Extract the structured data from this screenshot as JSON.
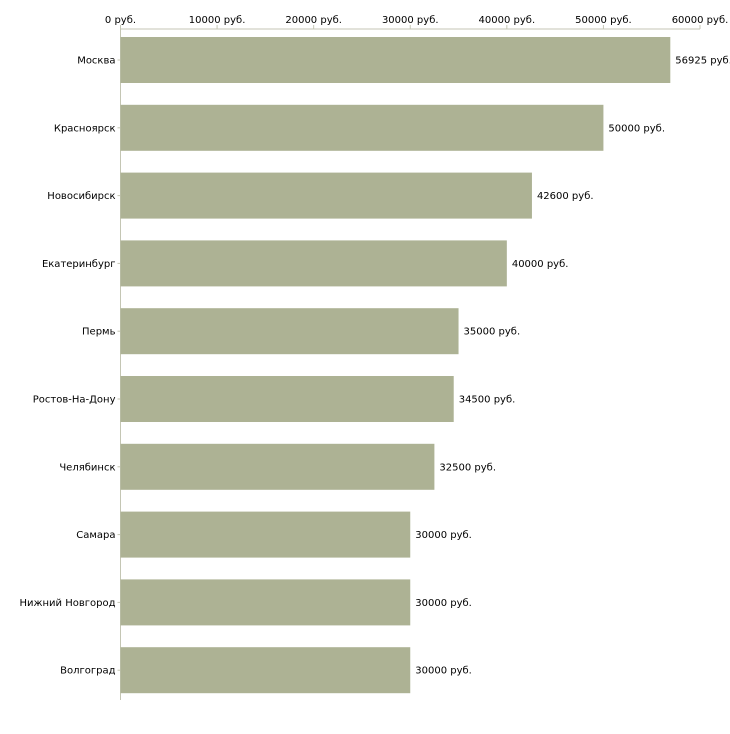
{
  "chart_data": {
    "type": "bar",
    "orientation": "horizontal",
    "title": "",
    "xlabel": "",
    "ylabel": "",
    "unit": "руб.",
    "xlim": [
      0,
      60000
    ],
    "ticks": [
      0,
      10000,
      20000,
      30000,
      40000,
      50000,
      60000
    ],
    "tick_labels": [
      "0 руб.",
      "10000 руб.",
      "20000 руб.",
      "30000 руб.",
      "40000 руб.",
      "50000 руб.",
      "60000 руб."
    ],
    "categories": [
      "Москва",
      "Красноярск",
      "Новосибирск",
      "Екатеринбург",
      "Пермь",
      "Ростов-На-Дону",
      "Челябинск",
      "Самара",
      "Нижний Новгород",
      "Волгоград"
    ],
    "values": [
      56925,
      50000,
      42600,
      40000,
      35000,
      34500,
      32500,
      30000,
      30000,
      30000
    ],
    "value_labels": [
      "56925 руб.",
      "50000 руб.",
      "42600 руб.",
      "40000 руб.",
      "35000 руб.",
      "34500 руб.",
      "32500 руб.",
      "30000 руб.",
      "30000 руб.",
      "30000 руб."
    ],
    "axis_position": "top",
    "grid": false,
    "bar_color": "#adb294",
    "axis_color": "#c4c6b4"
  }
}
